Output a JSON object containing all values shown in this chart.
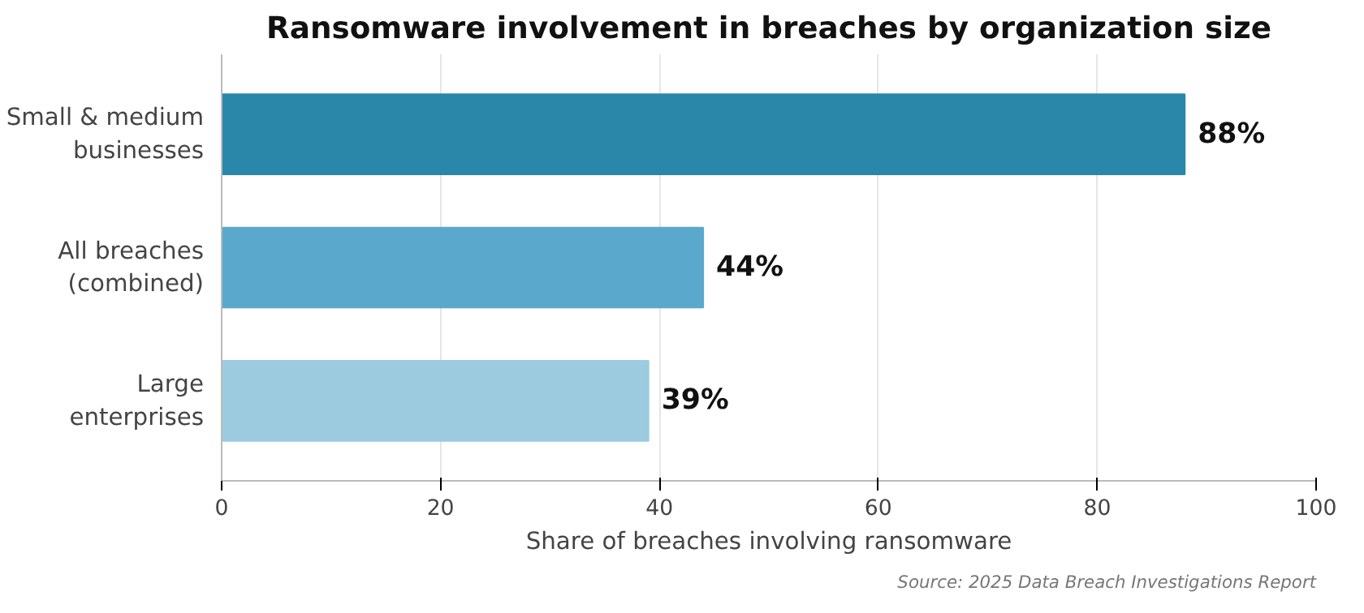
{
  "chart_data": {
    "type": "bar",
    "orientation": "horizontal",
    "title": "Ransomware involvement in breaches by organization size",
    "xlabel": "Share of breaches involving ransomware",
    "categories": [
      "Small & medium\nbusinesses",
      "All breaches\n(combined)",
      "Large\nenterprises"
    ],
    "values": [
      88,
      44,
      39
    ],
    "colors": [
      "#2b87aa",
      "#5aa9cc",
      "#9ccbe0"
    ],
    "value_labels": [
      "88%",
      "44%",
      "39%"
    ],
    "xlim": [
      0,
      100
    ],
    "xticks": [
      0,
      20,
      40,
      60,
      80,
      100
    ],
    "grid": "x",
    "annotations": [
      "Source: 2025 Data Breach Investigations Report"
    ]
  }
}
